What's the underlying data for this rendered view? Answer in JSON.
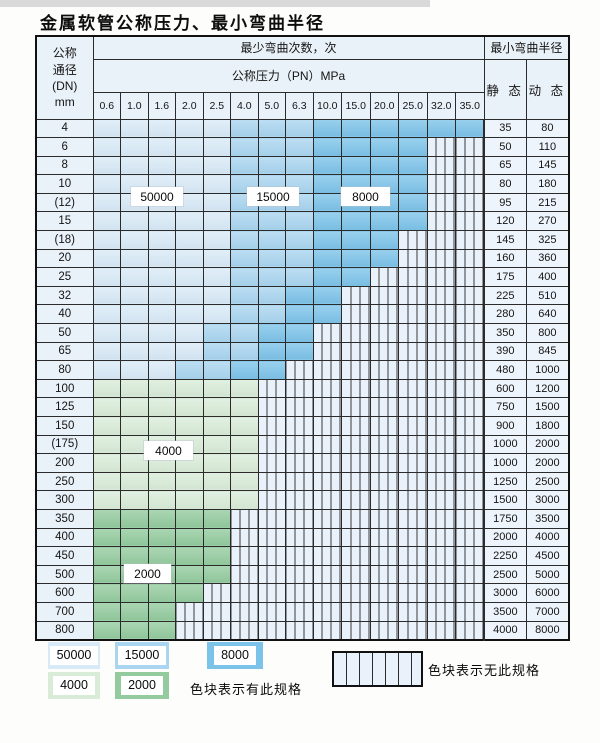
{
  "title": "金属软管公称压力、最小弯曲半径",
  "colors": {
    "cycles_50000": "#d8eaf7",
    "cycles_15000": "#a9d5f0",
    "cycles_8000": "#7cc3e9",
    "cycles_4000": "#d9ecd8",
    "cycles_2000": "#93cb9e",
    "hatch_bg": "#e9f1fa",
    "header_bg": "#eaf2f9"
  },
  "table": {
    "header": {
      "dn_label": "公称\n通径\n(DN)\nmm",
      "bend_cycles_label": "最少弯曲次数，次",
      "pressure_label": "公称压力（PN）MPa",
      "radius_label": "最小弯曲半径",
      "static_label": "静 态",
      "dynamic_label": "动 态",
      "pressures": [
        "0.6",
        "1.0",
        "1.6",
        "2.0",
        "2.5",
        "4.0",
        "5.0",
        "6.3",
        "10.0",
        "15.0",
        "20.0",
        "25.0",
        "32.0",
        "35.0"
      ]
    },
    "rows": [
      {
        "dn": "4",
        "spans": [
          [
            50000,
            5
          ],
          [
            15000,
            3
          ],
          [
            8000,
            6
          ]
        ],
        "static": "35",
        "dynamic": "80"
      },
      {
        "dn": "6",
        "spans": [
          [
            50000,
            5
          ],
          [
            15000,
            3
          ],
          [
            8000,
            4
          ]
        ],
        "static": "50",
        "dynamic": "110"
      },
      {
        "dn": "8",
        "spans": [
          [
            50000,
            5
          ],
          [
            15000,
            3
          ],
          [
            8000,
            4
          ]
        ],
        "static": "65",
        "dynamic": "145"
      },
      {
        "dn": "10",
        "spans": [
          [
            50000,
            5
          ],
          [
            15000,
            3
          ],
          [
            8000,
            4
          ]
        ],
        "static": "80",
        "dynamic": "180"
      },
      {
        "dn": "(12)",
        "spans": [
          [
            50000,
            5
          ],
          [
            15000,
            3
          ],
          [
            8000,
            4
          ]
        ],
        "static": "95",
        "dynamic": "215"
      },
      {
        "dn": "15",
        "spans": [
          [
            50000,
            5
          ],
          [
            15000,
            3
          ],
          [
            8000,
            4
          ]
        ],
        "static": "120",
        "dynamic": "270"
      },
      {
        "dn": "(18)",
        "spans": [
          [
            50000,
            5
          ],
          [
            15000,
            3
          ],
          [
            8000,
            3
          ]
        ],
        "static": "145",
        "dynamic": "325"
      },
      {
        "dn": "20",
        "spans": [
          [
            50000,
            5
          ],
          [
            15000,
            3
          ],
          [
            8000,
            3
          ]
        ],
        "static": "160",
        "dynamic": "360"
      },
      {
        "dn": "25",
        "spans": [
          [
            50000,
            5
          ],
          [
            15000,
            3
          ],
          [
            8000,
            2
          ]
        ],
        "static": "175",
        "dynamic": "400"
      },
      {
        "dn": "32",
        "spans": [
          [
            50000,
            5
          ],
          [
            15000,
            2
          ],
          [
            8000,
            2
          ]
        ],
        "static": "225",
        "dynamic": "510"
      },
      {
        "dn": "40",
        "spans": [
          [
            50000,
            5
          ],
          [
            15000,
            2
          ],
          [
            8000,
            2
          ]
        ],
        "static": "280",
        "dynamic": "640"
      },
      {
        "dn": "50",
        "spans": [
          [
            50000,
            4
          ],
          [
            15000,
            2
          ],
          [
            8000,
            2
          ]
        ],
        "static": "350",
        "dynamic": "800"
      },
      {
        "dn": "65",
        "spans": [
          [
            50000,
            4
          ],
          [
            15000,
            2
          ],
          [
            8000,
            2
          ]
        ],
        "static": "390",
        "dynamic": "845"
      },
      {
        "dn": "80",
        "spans": [
          [
            50000,
            3
          ],
          [
            15000,
            2
          ],
          [
            8000,
            2
          ]
        ],
        "static": "480",
        "dynamic": "1000"
      },
      {
        "dn": "100",
        "spans": [
          [
            4000,
            6
          ]
        ],
        "static": "600",
        "dynamic": "1200"
      },
      {
        "dn": "125",
        "spans": [
          [
            4000,
            6
          ]
        ],
        "static": "750",
        "dynamic": "1500"
      },
      {
        "dn": "150",
        "spans": [
          [
            4000,
            6
          ]
        ],
        "static": "900",
        "dynamic": "1800"
      },
      {
        "dn": "(175)",
        "spans": [
          [
            4000,
            6
          ]
        ],
        "static": "1000",
        "dynamic": "2000"
      },
      {
        "dn": "200",
        "spans": [
          [
            4000,
            6
          ]
        ],
        "static": "1000",
        "dynamic": "2000"
      },
      {
        "dn": "250",
        "spans": [
          [
            4000,
            6
          ]
        ],
        "static": "1250",
        "dynamic": "2500"
      },
      {
        "dn": "300",
        "spans": [
          [
            4000,
            6
          ]
        ],
        "static": "1500",
        "dynamic": "3000"
      },
      {
        "dn": "350",
        "spans": [
          [
            2000,
            5
          ]
        ],
        "static": "1750",
        "dynamic": "3500"
      },
      {
        "dn": "400",
        "spans": [
          [
            2000,
            5
          ]
        ],
        "static": "2000",
        "dynamic": "4000"
      },
      {
        "dn": "450",
        "spans": [
          [
            2000,
            5
          ]
        ],
        "static": "2250",
        "dynamic": "4500"
      },
      {
        "dn": "500",
        "spans": [
          [
            2000,
            5
          ]
        ],
        "static": "2500",
        "dynamic": "5000"
      },
      {
        "dn": "600",
        "spans": [
          [
            2000,
            4
          ]
        ],
        "static": "3000",
        "dynamic": "6000"
      },
      {
        "dn": "700",
        "spans": [
          [
            2000,
            3
          ]
        ],
        "static": "3500",
        "dynamic": "7000"
      },
      {
        "dn": "800",
        "spans": [
          [
            2000,
            3
          ]
        ],
        "static": "4000",
        "dynamic": "8000"
      }
    ]
  },
  "overlays": {
    "cycles_50000": "50000",
    "cycles_15000": "15000",
    "cycles_8000": "8000",
    "cycles_4000": "4000",
    "cycles_2000": "2000"
  },
  "legend": {
    "swatches": [
      {
        "label": "50000",
        "value": 50000
      },
      {
        "label": "15000",
        "value": 15000
      },
      {
        "label": "8000",
        "value": 8000
      },
      {
        "label": "4000",
        "value": 4000
      },
      {
        "label": "2000",
        "value": 2000
      }
    ],
    "has_spec_text": "色块表示有此规格",
    "no_spec_text": "色块表示无此规格"
  }
}
